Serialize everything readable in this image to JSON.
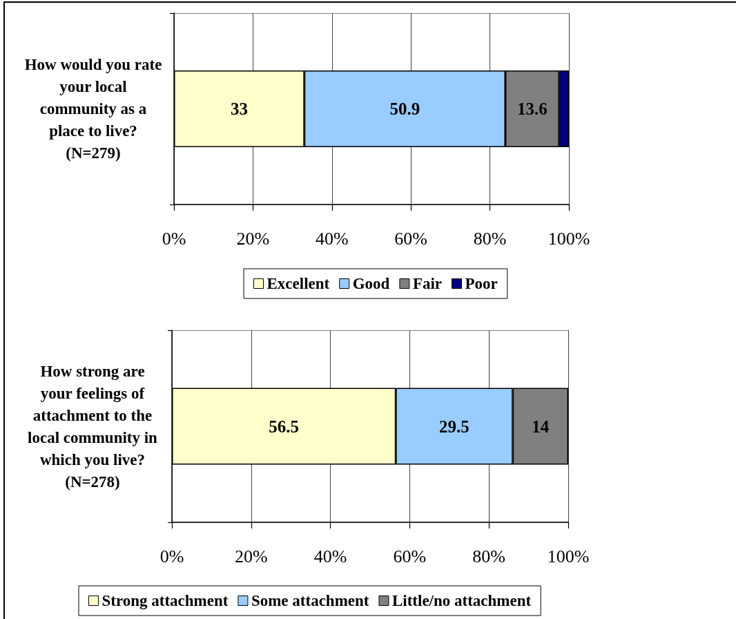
{
  "chart_data": [
    {
      "type": "bar",
      "orientation": "horizontal",
      "stacked": true,
      "categories": [
        "How would you rate\nyour local\ncommunity as a\nplace to live?\n(N=279)"
      ],
      "series": [
        {
          "name": "Excellent",
          "color": "#ffffcc",
          "values": [
            33
          ],
          "value_labels": [
            "33"
          ]
        },
        {
          "name": "Good",
          "color": "#99ccff",
          "values": [
            50.9
          ],
          "value_labels": [
            "50.9"
          ]
        },
        {
          "name": "Fair",
          "color": "#808080",
          "values": [
            13.6
          ],
          "value_labels": [
            "13.6"
          ]
        },
        {
          "name": "Poor",
          "color": "#000080",
          "values": [
            2.5
          ],
          "value_labels": [
            null
          ]
        }
      ],
      "xlim": [
        0,
        100
      ],
      "xticks": [
        {
          "value": 0,
          "label": "0%"
        },
        {
          "value": 20,
          "label": "20%"
        },
        {
          "value": 40,
          "label": "40%"
        },
        {
          "value": 60,
          "label": "60%"
        },
        {
          "value": 80,
          "label": "80%"
        },
        {
          "value": 100,
          "label": "100%"
        }
      ],
      "grid": true,
      "legend": "bottom"
    },
    {
      "type": "bar",
      "orientation": "horizontal",
      "stacked": true,
      "categories": [
        "How strong are\nyour feelings of\nattachment to the\nlocal community in\nwhich you live?\n(N=278)"
      ],
      "series": [
        {
          "name": "Strong attachment",
          "color": "#ffffcc",
          "values": [
            56.5
          ]
        },
        {
          "name": "Some attachment",
          "color": "#99ccff",
          "values": [
            29.5
          ]
        },
        {
          "name": "Little/no attachment",
          "color": "#808080",
          "values": [
            14
          ]
        }
      ],
      "xlim": [
        0,
        100
      ],
      "xticks": [
        {
          "value": 0,
          "label": "0%"
        },
        {
          "value": 20,
          "label": "20%"
        },
        {
          "value": 40,
          "label": "40%"
        },
        {
          "value": 60,
          "label": "60%"
        },
        {
          "value": 80,
          "label": "80%"
        },
        {
          "value": 100,
          "label": "100%"
        }
      ],
      "grid": true,
      "legend": "bottom",
      "data_labels": true
    }
  ]
}
